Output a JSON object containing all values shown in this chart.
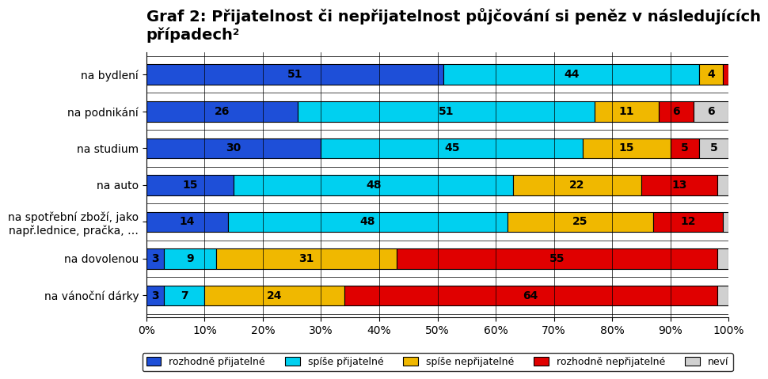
{
  "categories": [
    "na bydlení",
    "na podnikání",
    "na studium",
    "na auto",
    "na spotřební zboží, jako\nnapř.lednice, pračka, …",
    "na dovolenou",
    "na vánoční dárky"
  ],
  "series": {
    "rozhodně přijatelné": [
      51,
      26,
      30,
      15,
      14,
      3,
      3
    ],
    "spíše přijatelné": [
      44,
      51,
      45,
      48,
      48,
      9,
      7
    ],
    "spíše nepřijatelné": [
      4,
      11,
      15,
      22,
      25,
      31,
      24
    ],
    "rozhodně nepřijatelné": [
      1,
      6,
      5,
      13,
      12,
      55,
      64
    ],
    "neví": [
      0,
      6,
      5,
      2,
      1,
      2,
      2
    ]
  },
  "colors": {
    "rozhodně přijatelné": "#1e4fd8",
    "spíše přijatelné": "#00d0f0",
    "spíše nepřijatelné": "#f0b800",
    "rozhodně nepřijatelné": "#e00000",
    "neví": "#d0d0d0"
  },
  "title": "Graf 2: Přijatelnost či nepřijatelnost půjčování si peněz v následujících\npřípadech²",
  "xlabel": "",
  "ylabel": "",
  "xlim": [
    0,
    100
  ],
  "legend_labels": [
    "rozhodně přijatelné",
    "spíše přijatelné",
    "spíše nepřijatelné",
    "rozhodně nepřijatelné",
    "neví"
  ],
  "figsize": [
    9.6,
    5.0
  ],
  "bar_height": 0.55,
  "grid_color": "#000000",
  "background_color": "#ffffff",
  "title_fontsize": 14,
  "label_fontsize": 10,
  "tick_fontsize": 10,
  "value_fontsize": 10
}
